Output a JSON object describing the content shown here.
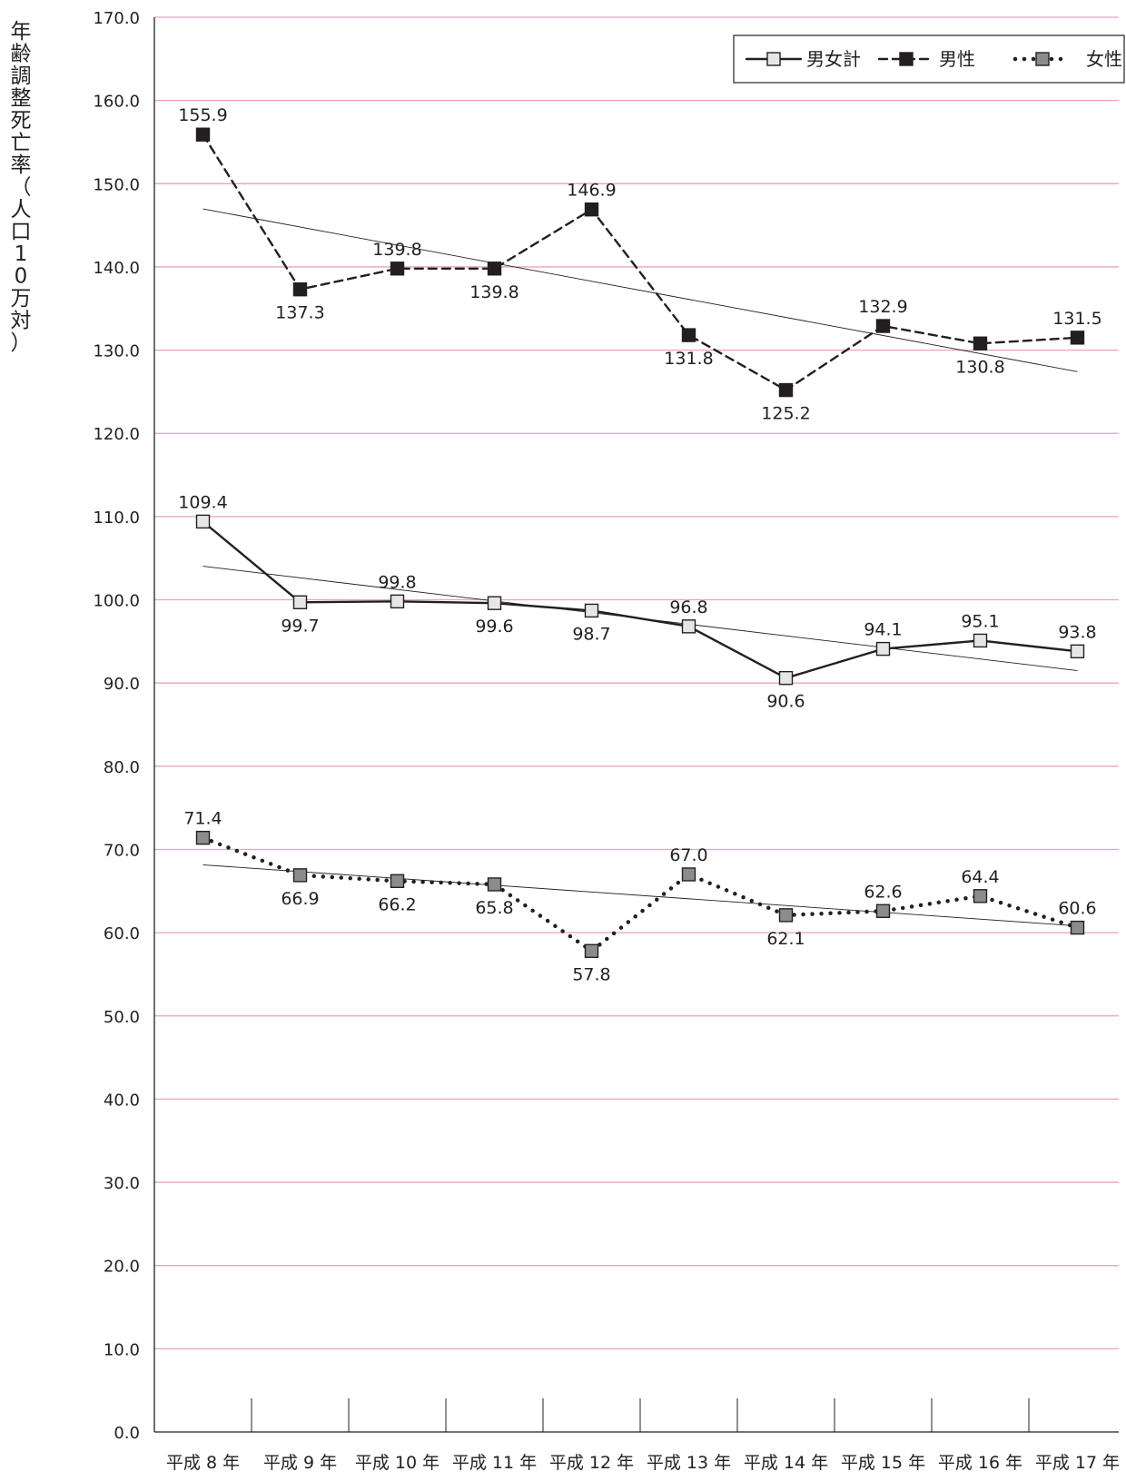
{
  "chart_data": {
    "type": "line",
    "title": "",
    "ylabel": "年齢調整死亡率（人口10万対）",
    "xlabel": "",
    "ylim": [
      0,
      170
    ],
    "ytick_step": 10,
    "yticks": [
      "0.0",
      "10.0",
      "20.0",
      "30.0",
      "40.0",
      "50.0",
      "60.0",
      "70.0",
      "80.0",
      "90.0",
      "100.0",
      "110.0",
      "120.0",
      "130.0",
      "140.0",
      "150.0",
      "160.0",
      "170.0"
    ],
    "categories": [
      "平成 8 年",
      "平成 9 年",
      "平成 10 年",
      "平成 11 年",
      "平成 12 年",
      "平成 13 年",
      "平成 14 年",
      "平成 15 年",
      "平成 16 年",
      "平成 17 年"
    ],
    "grid": true,
    "gridline_color": "#e8a1c4",
    "legend_position": "top-right",
    "trendlines": true,
    "series": [
      {
        "name": "男女計",
        "values": [
          109.4,
          99.7,
          99.8,
          99.6,
          98.7,
          96.8,
          90.6,
          94.1,
          95.1,
          93.8
        ],
        "labels": [
          "109.4",
          "99.7",
          "99.8",
          "99.6",
          "98.7",
          "96.8",
          "90.6",
          "94.1",
          "95.1",
          "93.8"
        ],
        "line_style": "solid",
        "marker_fill": "#e6e6e6"
      },
      {
        "name": "男性",
        "values": [
          155.9,
          137.3,
          139.8,
          139.8,
          146.9,
          131.8,
          125.2,
          132.9,
          130.8,
          131.5
        ],
        "labels": [
          "155.9",
          "137.3",
          "139.8",
          "139.8",
          "146.9",
          "131.8",
          "125.2",
          "132.9",
          "130.8",
          "131.5"
        ],
        "line_style": "dashed",
        "marker_fill": "#231f20"
      },
      {
        "name": "女性",
        "values": [
          71.4,
          66.9,
          66.2,
          65.8,
          57.8,
          67.0,
          62.1,
          62.6,
          64.4,
          60.6
        ],
        "labels": [
          "71.4",
          "66.9",
          "66.2",
          "65.8",
          "57.8",
          "67.0",
          "62.1",
          "62.6",
          "64.4",
          "60.6"
        ],
        "line_style": "dotted",
        "marker_fill": "#8c8c8c"
      }
    ]
  }
}
